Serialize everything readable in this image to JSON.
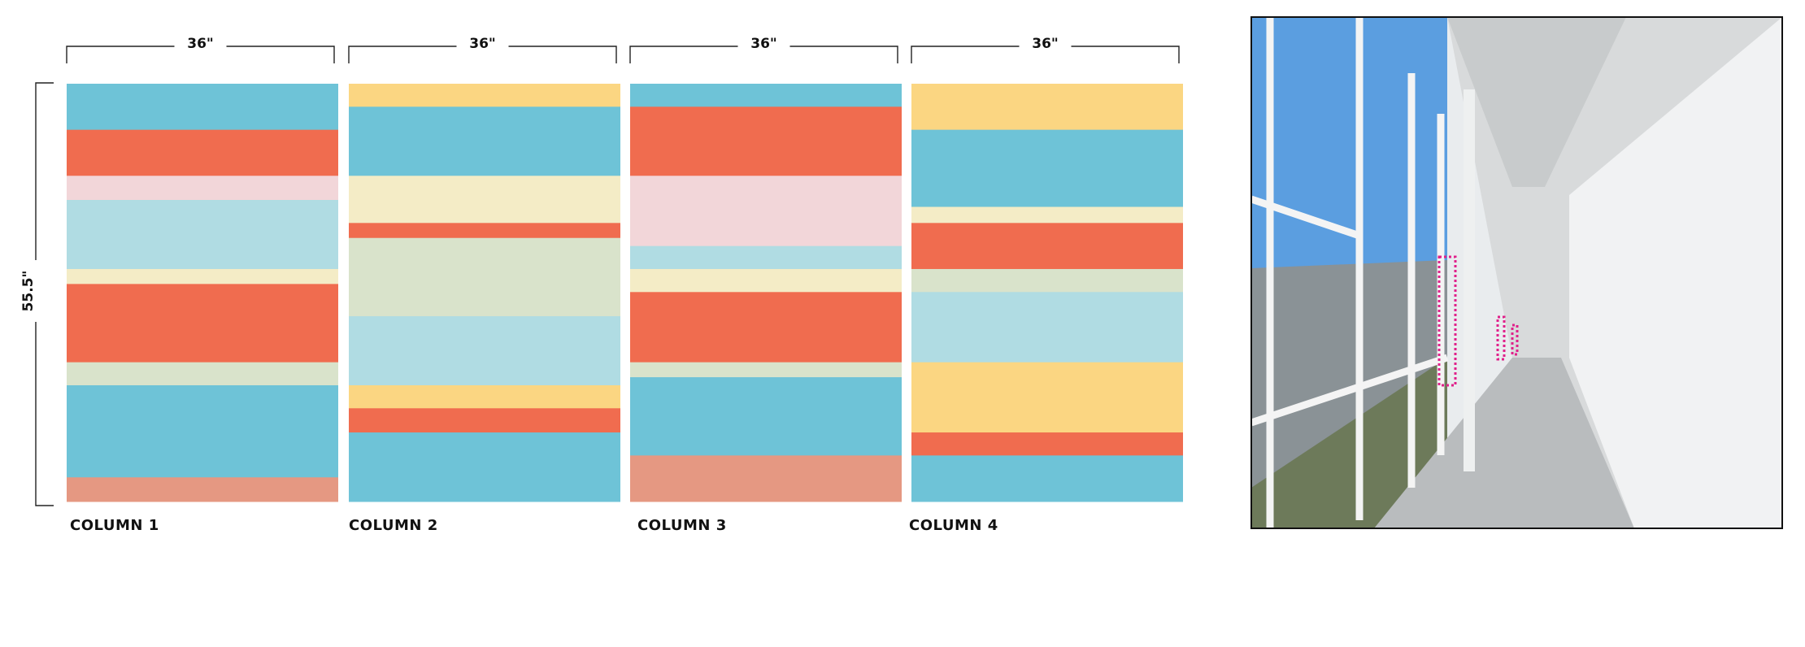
{
  "dimensions": {
    "widths": [
      "36\"",
      "36\"",
      "36\"",
      "36\""
    ],
    "height": "55.5\""
  },
  "columns": [
    {
      "label": "COLUMN 1"
    },
    {
      "label": "COLUMN 2"
    },
    {
      "label": "COLUMN 3"
    },
    {
      "label": "COLUMN 4"
    }
  ]
}
